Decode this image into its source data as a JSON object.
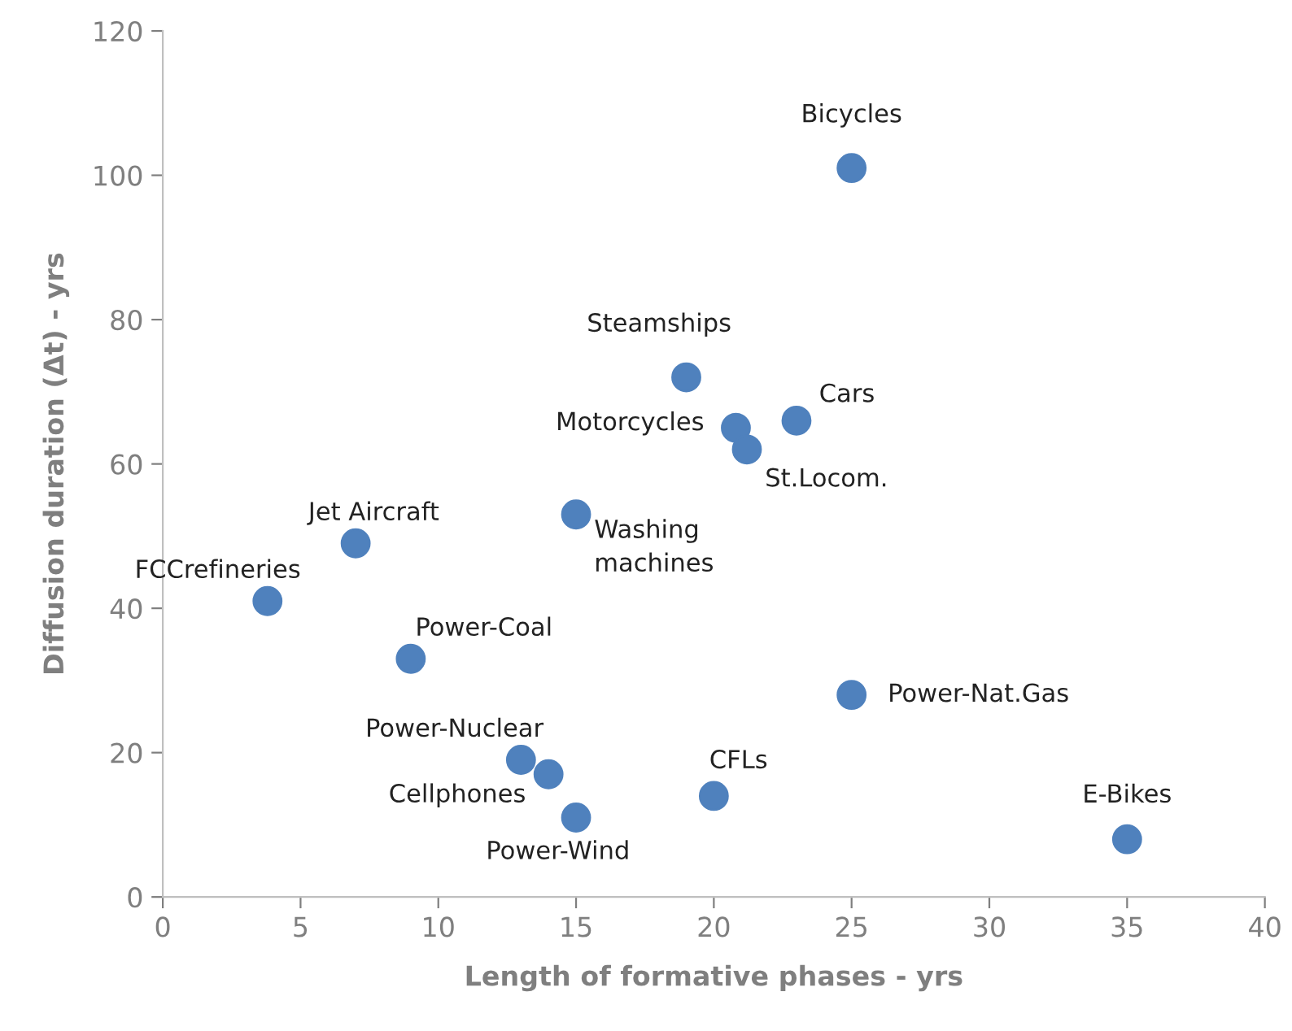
{
  "chart_data": {
    "type": "scatter",
    "xlabel": "Length of formative phases - yrs",
    "ylabel": "Diffusion duration (Δt) - yrs",
    "x": [
      25,
      19,
      23,
      20.8,
      21.2,
      15,
      7,
      3.8,
      9,
      13,
      14,
      15,
      20,
      25,
      35
    ],
    "series": [
      {
        "color": "#4f81bd",
        "values": [
          101,
          72,
          66,
          65,
          62,
          53,
          49,
          41,
          33,
          19,
          17,
          11,
          14,
          28,
          8
        ]
      }
    ],
    "marker": "circle",
    "xlim": [
      0,
      40
    ],
    "xticks": [
      0,
      5,
      10,
      15,
      20,
      25,
      30,
      35,
      40
    ],
    "ylim": [
      0,
      120
    ],
    "yticks": [
      0,
      20,
      40,
      60,
      80,
      100,
      120
    ],
    "grid": false,
    "legend": false,
    "annotations": [
      {
        "text": "Bicycles",
        "x": 25,
        "y": 101
      },
      {
        "text": "Steamships",
        "x": 19,
        "y": 72
      },
      {
        "text": "Cars",
        "x": 23,
        "y": 66
      },
      {
        "text": "Motorcycles",
        "x": 20.8,
        "y": 65
      },
      {
        "text": "St.Locom.",
        "x": 21.2,
        "y": 62
      },
      {
        "text": "Washing\nmachines",
        "x": 15,
        "y": 53
      },
      {
        "text": "Jet Aircraft",
        "x": 7,
        "y": 49
      },
      {
        "text": "FCCrefineries",
        "x": 3.8,
        "y": 41
      },
      {
        "text": "Power-Coal",
        "x": 9,
        "y": 33
      },
      {
        "text": "Power-Nuclear",
        "x": 13,
        "y": 19
      },
      {
        "text": "Cellphones",
        "x": 14,
        "y": 17
      },
      {
        "text": "Power-Wind",
        "x": 15,
        "y": 11
      },
      {
        "text": "CFLs",
        "x": 20,
        "y": 14
      },
      {
        "text": "Power-Nat.Gas",
        "x": 25,
        "y": 28
      },
      {
        "text": "E-Bikes",
        "x": 35,
        "y": 8
      }
    ]
  }
}
